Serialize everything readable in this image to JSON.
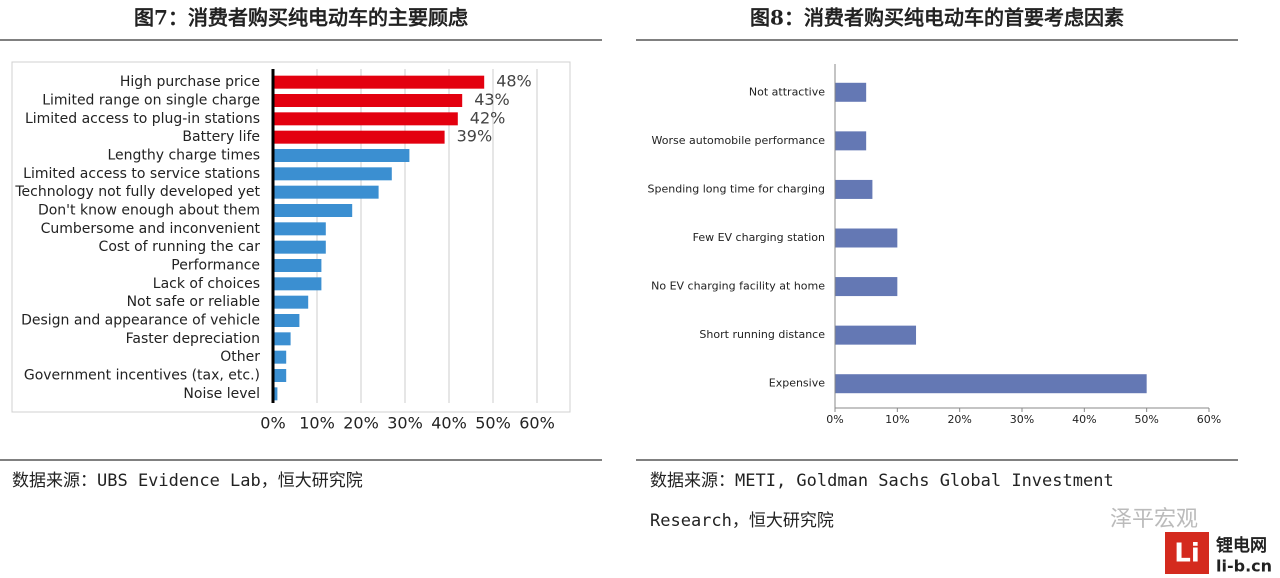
{
  "chart_data": [
    {
      "type": "bar",
      "orientation": "horizontal",
      "title": "图7：消费者购买纯电动车的主要顾虑",
      "source": [
        "数据来源：UBS Evidence Lab，恒大研究院"
      ],
      "categories": [
        "High purchase price",
        "Limited range on single charge",
        "Limited access to plug-in stations",
        "Battery life",
        "Lengthy charge times",
        "Limited access to service stations",
        "Technology not fully developed yet",
        "Don't know enough about them",
        "Cumbersome and inconvenient",
        "Cost of running the car",
        "Performance",
        "Lack of choices",
        "Not safe or reliable",
        "Design and appearance of vehicle",
        "Faster depreciation",
        "Other",
        "Government incentives (tax, etc.)",
        "Noise level"
      ],
      "values": [
        48,
        43,
        42,
        39,
        31,
        27,
        24,
        18,
        12,
        12,
        11,
        11,
        8,
        6,
        4,
        3,
        3,
        1
      ],
      "value_labels": [
        "48%",
        "43%",
        "42%",
        "39%",
        null,
        null,
        null,
        null,
        null,
        null,
        null,
        null,
        null,
        null,
        null,
        null,
        null,
        null
      ],
      "colors": [
        "#e3000f",
        "#e3000f",
        "#e3000f",
        "#e3000f",
        "#3b8fd1",
        "#3b8fd1",
        "#3b8fd1",
        "#3b8fd1",
        "#3b8fd1",
        "#3b8fd1",
        "#3b8fd1",
        "#3b8fd1",
        "#3b8fd1",
        "#3b8fd1",
        "#3b8fd1",
        "#3b8fd1",
        "#3b8fd1",
        "#3b8fd1"
      ],
      "xlim": [
        0,
        60
      ],
      "xticks": [
        {
          "value": 0,
          "label": "0%"
        },
        {
          "value": 10,
          "label": "10%"
        },
        {
          "value": 20,
          "label": "20%"
        },
        {
          "value": 30,
          "label": "30%"
        },
        {
          "value": 40,
          "label": "40%"
        },
        {
          "value": 50,
          "label": "50%"
        },
        {
          "value": 60,
          "label": "60%"
        }
      ],
      "grid": true
    },
    {
      "type": "bar",
      "orientation": "horizontal",
      "title": "图8：消费者购买纯电动车的首要考虑因素",
      "source": [
        "数据来源：METI, Goldman Sachs Global Investment",
        "Research，恒大研究院"
      ],
      "categories": [
        "Not attractive",
        "Worse automobile performance",
        "Spending long time for charging",
        "Few EV charging station",
        "No EV charging facility at home",
        "Short running distance",
        "Expensive"
      ],
      "values": [
        5,
        5,
        6,
        10,
        10,
        13,
        50
      ],
      "color": "#6478b4",
      "xlim": [
        0,
        60
      ],
      "xticks": [
        {
          "value": 0,
          "label": "0%"
        },
        {
          "value": 10,
          "label": "10%"
        },
        {
          "value": 20,
          "label": "20%"
        },
        {
          "value": 30,
          "label": "30%"
        },
        {
          "value": 40,
          "label": "40%"
        },
        {
          "value": 50,
          "label": "50%"
        },
        {
          "value": 60,
          "label": "60%"
        }
      ],
      "grid": false
    }
  ],
  "watermark": {
    "wechat": "泽平宏观",
    "logo": "Li",
    "site": "锂电网",
    "url": "li-b.cn"
  }
}
